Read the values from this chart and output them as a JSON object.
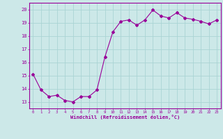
{
  "x": [
    0,
    1,
    2,
    3,
    4,
    5,
    6,
    7,
    8,
    9,
    10,
    11,
    12,
    13,
    14,
    15,
    16,
    17,
    18,
    19,
    20,
    21,
    22,
    23
  ],
  "y": [
    15.1,
    13.9,
    13.4,
    13.5,
    13.1,
    13.0,
    13.4,
    13.4,
    13.9,
    16.4,
    18.3,
    19.1,
    19.2,
    18.8,
    19.2,
    19.95,
    19.5,
    19.35,
    19.75,
    19.35,
    19.25,
    19.1,
    18.9,
    19.2
  ],
  "line_color": "#990099",
  "marker": "D",
  "marker_size": 2.0,
  "bg_color": "#cce8e8",
  "grid_color": "#aad4d4",
  "xlabel": "Windchill (Refroidissement éolien,°C)",
  "xlabel_color": "#990099",
  "tick_color": "#990099",
  "label_color": "#990099",
  "ylim": [
    12.5,
    20.5
  ],
  "xlim": [
    -0.5,
    23.5
  ],
  "yticks": [
    13,
    14,
    15,
    16,
    17,
    18,
    19,
    20
  ],
  "xticks": [
    0,
    1,
    2,
    3,
    4,
    5,
    6,
    7,
    8,
    9,
    10,
    11,
    12,
    13,
    14,
    15,
    16,
    17,
    18,
    19,
    20,
    21,
    22,
    23
  ],
  "figsize": [
    3.2,
    2.0
  ],
  "dpi": 100
}
